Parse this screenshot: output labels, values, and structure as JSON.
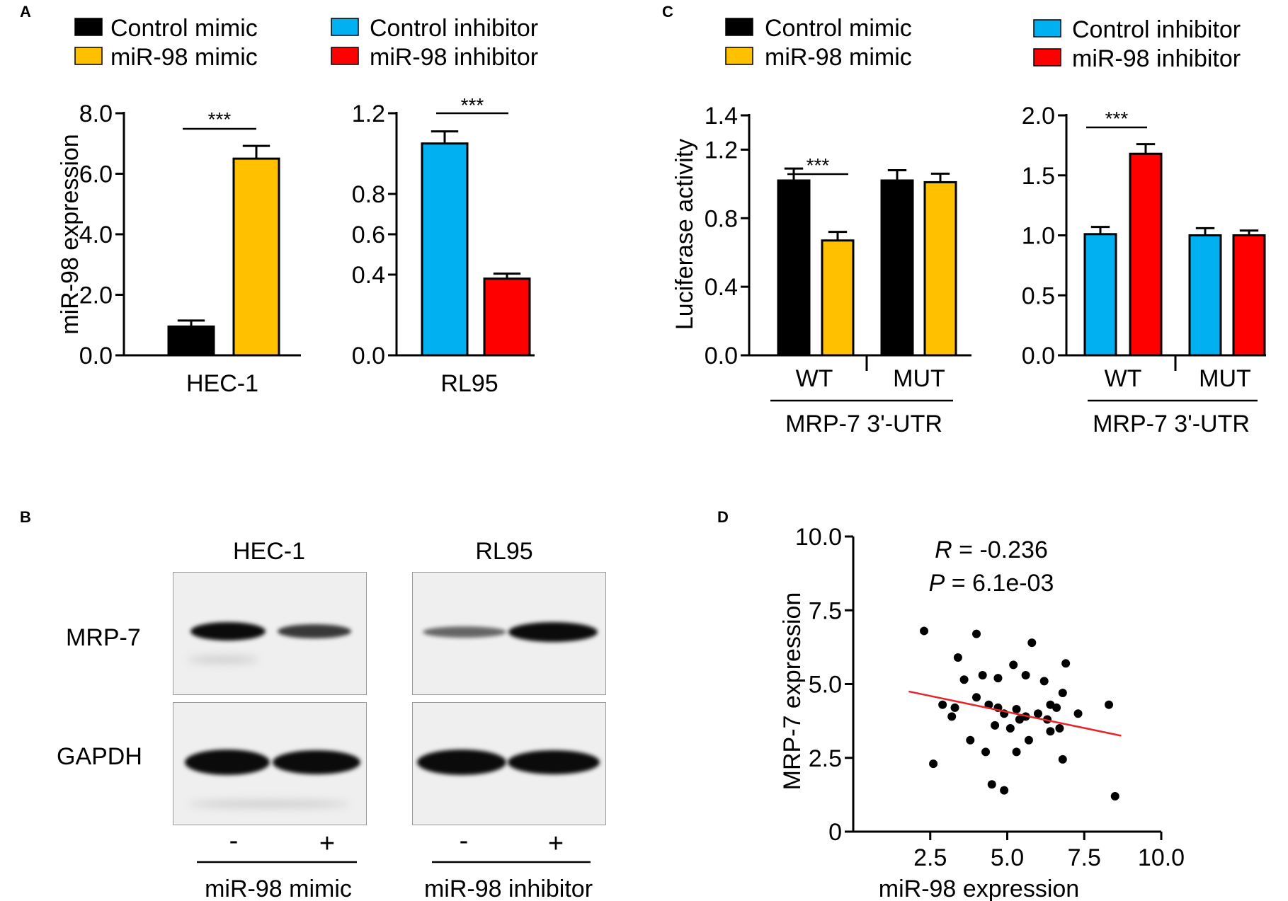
{
  "colors": {
    "control_mimic": "#000000",
    "mir98_mimic": "#FFC000",
    "control_inhibitor": "#00B0F0",
    "mir98_inhibitor": "#FF0000",
    "fit_line": "#E8232A"
  },
  "panel_labels": {
    "a": "A",
    "b": "B",
    "c": "C",
    "d": "D"
  },
  "legend": {
    "control_mimic": "Control mimic",
    "mir98_mimic": "miR-98 mimic",
    "control_inhibitor": "Control inhibitor",
    "mir98_inhibitor": "miR-98 inhibitor"
  },
  "significance": "***",
  "chart_data": [
    {
      "id": "A1",
      "type": "bar",
      "ylabel": "miR-98 expression",
      "xlabel": "HEC-1",
      "ylim": [
        0,
        8
      ],
      "yticks": [
        "0.0",
        "2.0",
        "4.0",
        "6.0",
        "8.0"
      ],
      "series": [
        {
          "name": "Control mimic",
          "value": 0.95,
          "error": 0.2
        },
        {
          "name": "miR-98 mimic",
          "value": 6.5,
          "error": 0.42
        }
      ]
    },
    {
      "id": "A2",
      "type": "bar",
      "ylabel": "",
      "xlabel": "RL95",
      "ylim": [
        0,
        1.2
      ],
      "yticks": [
        "0.0",
        "0.4",
        "0.6",
        "0.8",
        "1.2"
      ],
      "series": [
        {
          "name": "Control inhibitor",
          "value": 1.05,
          "error": 0.06
        },
        {
          "name": "miR-98 inhibitor",
          "value": 0.38,
          "error": 0.025
        }
      ]
    },
    {
      "id": "C1",
      "type": "bar",
      "ylabel": "Luciferase activity",
      "group_label": "MRP-7 3'-UTR",
      "categories": [
        "WT",
        "MUT"
      ],
      "ylim": [
        0,
        1.4
      ],
      "yticks": [
        "0.0",
        "0.4",
        "0.8",
        "1.2",
        "1.4"
      ],
      "series": [
        {
          "name": "Control mimic",
          "values": [
            1.02,
            1.02
          ],
          "errors": [
            0.07,
            0.06
          ]
        },
        {
          "name": "miR-98 mimic",
          "values": [
            0.67,
            1.01
          ],
          "errors": [
            0.05,
            0.05
          ]
        }
      ]
    },
    {
      "id": "C2",
      "type": "bar",
      "ylabel": "",
      "group_label": "MRP-7 3'-UTR",
      "categories": [
        "WT",
        "MUT"
      ],
      "ylim": [
        0,
        2.0
      ],
      "yticks": [
        "0.0",
        "0.5",
        "1.0",
        "1.5",
        "2.0"
      ],
      "series": [
        {
          "name": "Control inhibitor",
          "values": [
            1.01,
            1.0
          ],
          "errors": [
            0.06,
            0.06
          ]
        },
        {
          "name": "miR-98 inhibitor",
          "values": [
            1.68,
            1.0
          ],
          "errors": [
            0.08,
            0.04
          ]
        }
      ]
    },
    {
      "id": "D",
      "type": "scatter",
      "xlabel": "miR-98 expression",
      "ylabel": "MRP-7 expression",
      "xlim": [
        0,
        10
      ],
      "ylim": [
        0,
        10
      ],
      "xticks": [
        "2.5",
        "5.0",
        "7.5",
        "10.0"
      ],
      "yticks": [
        "0",
        "2.5",
        "5.0",
        "7.5",
        "10.0"
      ],
      "stats": {
        "r_symbol": "R",
        "r_text": " = -0.236",
        "p_symbol": "P",
        "p_text": " = 6.1e-03"
      },
      "fit_line": {
        "x": [
          1.8,
          8.7
        ],
        "y": [
          4.75,
          3.25
        ]
      },
      "points": [
        [
          2.3,
          6.8
        ],
        [
          2.6,
          2.3
        ],
        [
          2.9,
          4.3
        ],
        [
          3.2,
          3.9
        ],
        [
          3.3,
          4.2
        ],
        [
          3.4,
          5.9
        ],
        [
          3.6,
          5.15
        ],
        [
          3.8,
          3.1
        ],
        [
          4.0,
          6.7
        ],
        [
          4.0,
          4.55
        ],
        [
          4.2,
          5.3
        ],
        [
          4.3,
          2.7
        ],
        [
          4.4,
          4.3
        ],
        [
          4.5,
          1.6
        ],
        [
          4.6,
          3.6
        ],
        [
          4.7,
          4.2
        ],
        [
          4.7,
          5.2
        ],
        [
          4.9,
          4.0
        ],
        [
          4.9,
          1.4
        ],
        [
          5.1,
          3.5
        ],
        [
          5.2,
          5.65
        ],
        [
          5.3,
          2.7
        ],
        [
          5.3,
          4.15
        ],
        [
          5.4,
          3.8
        ],
        [
          5.6,
          3.9
        ],
        [
          5.6,
          5.3
        ],
        [
          5.7,
          3.1
        ],
        [
          5.8,
          6.4
        ],
        [
          6.0,
          4.0
        ],
        [
          6.2,
          5.1
        ],
        [
          6.3,
          3.8
        ],
        [
          6.4,
          3.4
        ],
        [
          6.4,
          4.3
        ],
        [
          6.6,
          4.2
        ],
        [
          6.7,
          3.5
        ],
        [
          6.8,
          2.45
        ],
        [
          6.8,
          4.7
        ],
        [
          6.9,
          5.7
        ],
        [
          7.3,
          4.0
        ],
        [
          8.3,
          4.3
        ],
        [
          8.5,
          1.2
        ]
      ]
    }
  ],
  "blot": {
    "columns": {
      "hec": "HEC-1",
      "rl95": "RL95"
    },
    "rows": {
      "mrp7": "MRP-7",
      "gapdh": "GAPDH"
    },
    "signs": {
      "minus": "-",
      "plus": "+"
    },
    "treatments": {
      "mimic": "miR-98 mimic",
      "inhibitor": "miR-98 inhibitor"
    },
    "mrp7_band_intensity": {
      "hec_minus": 1.0,
      "hec_plus": 0.65,
      "rl95_minus": 0.45,
      "rl95_plus": 1.0
    }
  }
}
